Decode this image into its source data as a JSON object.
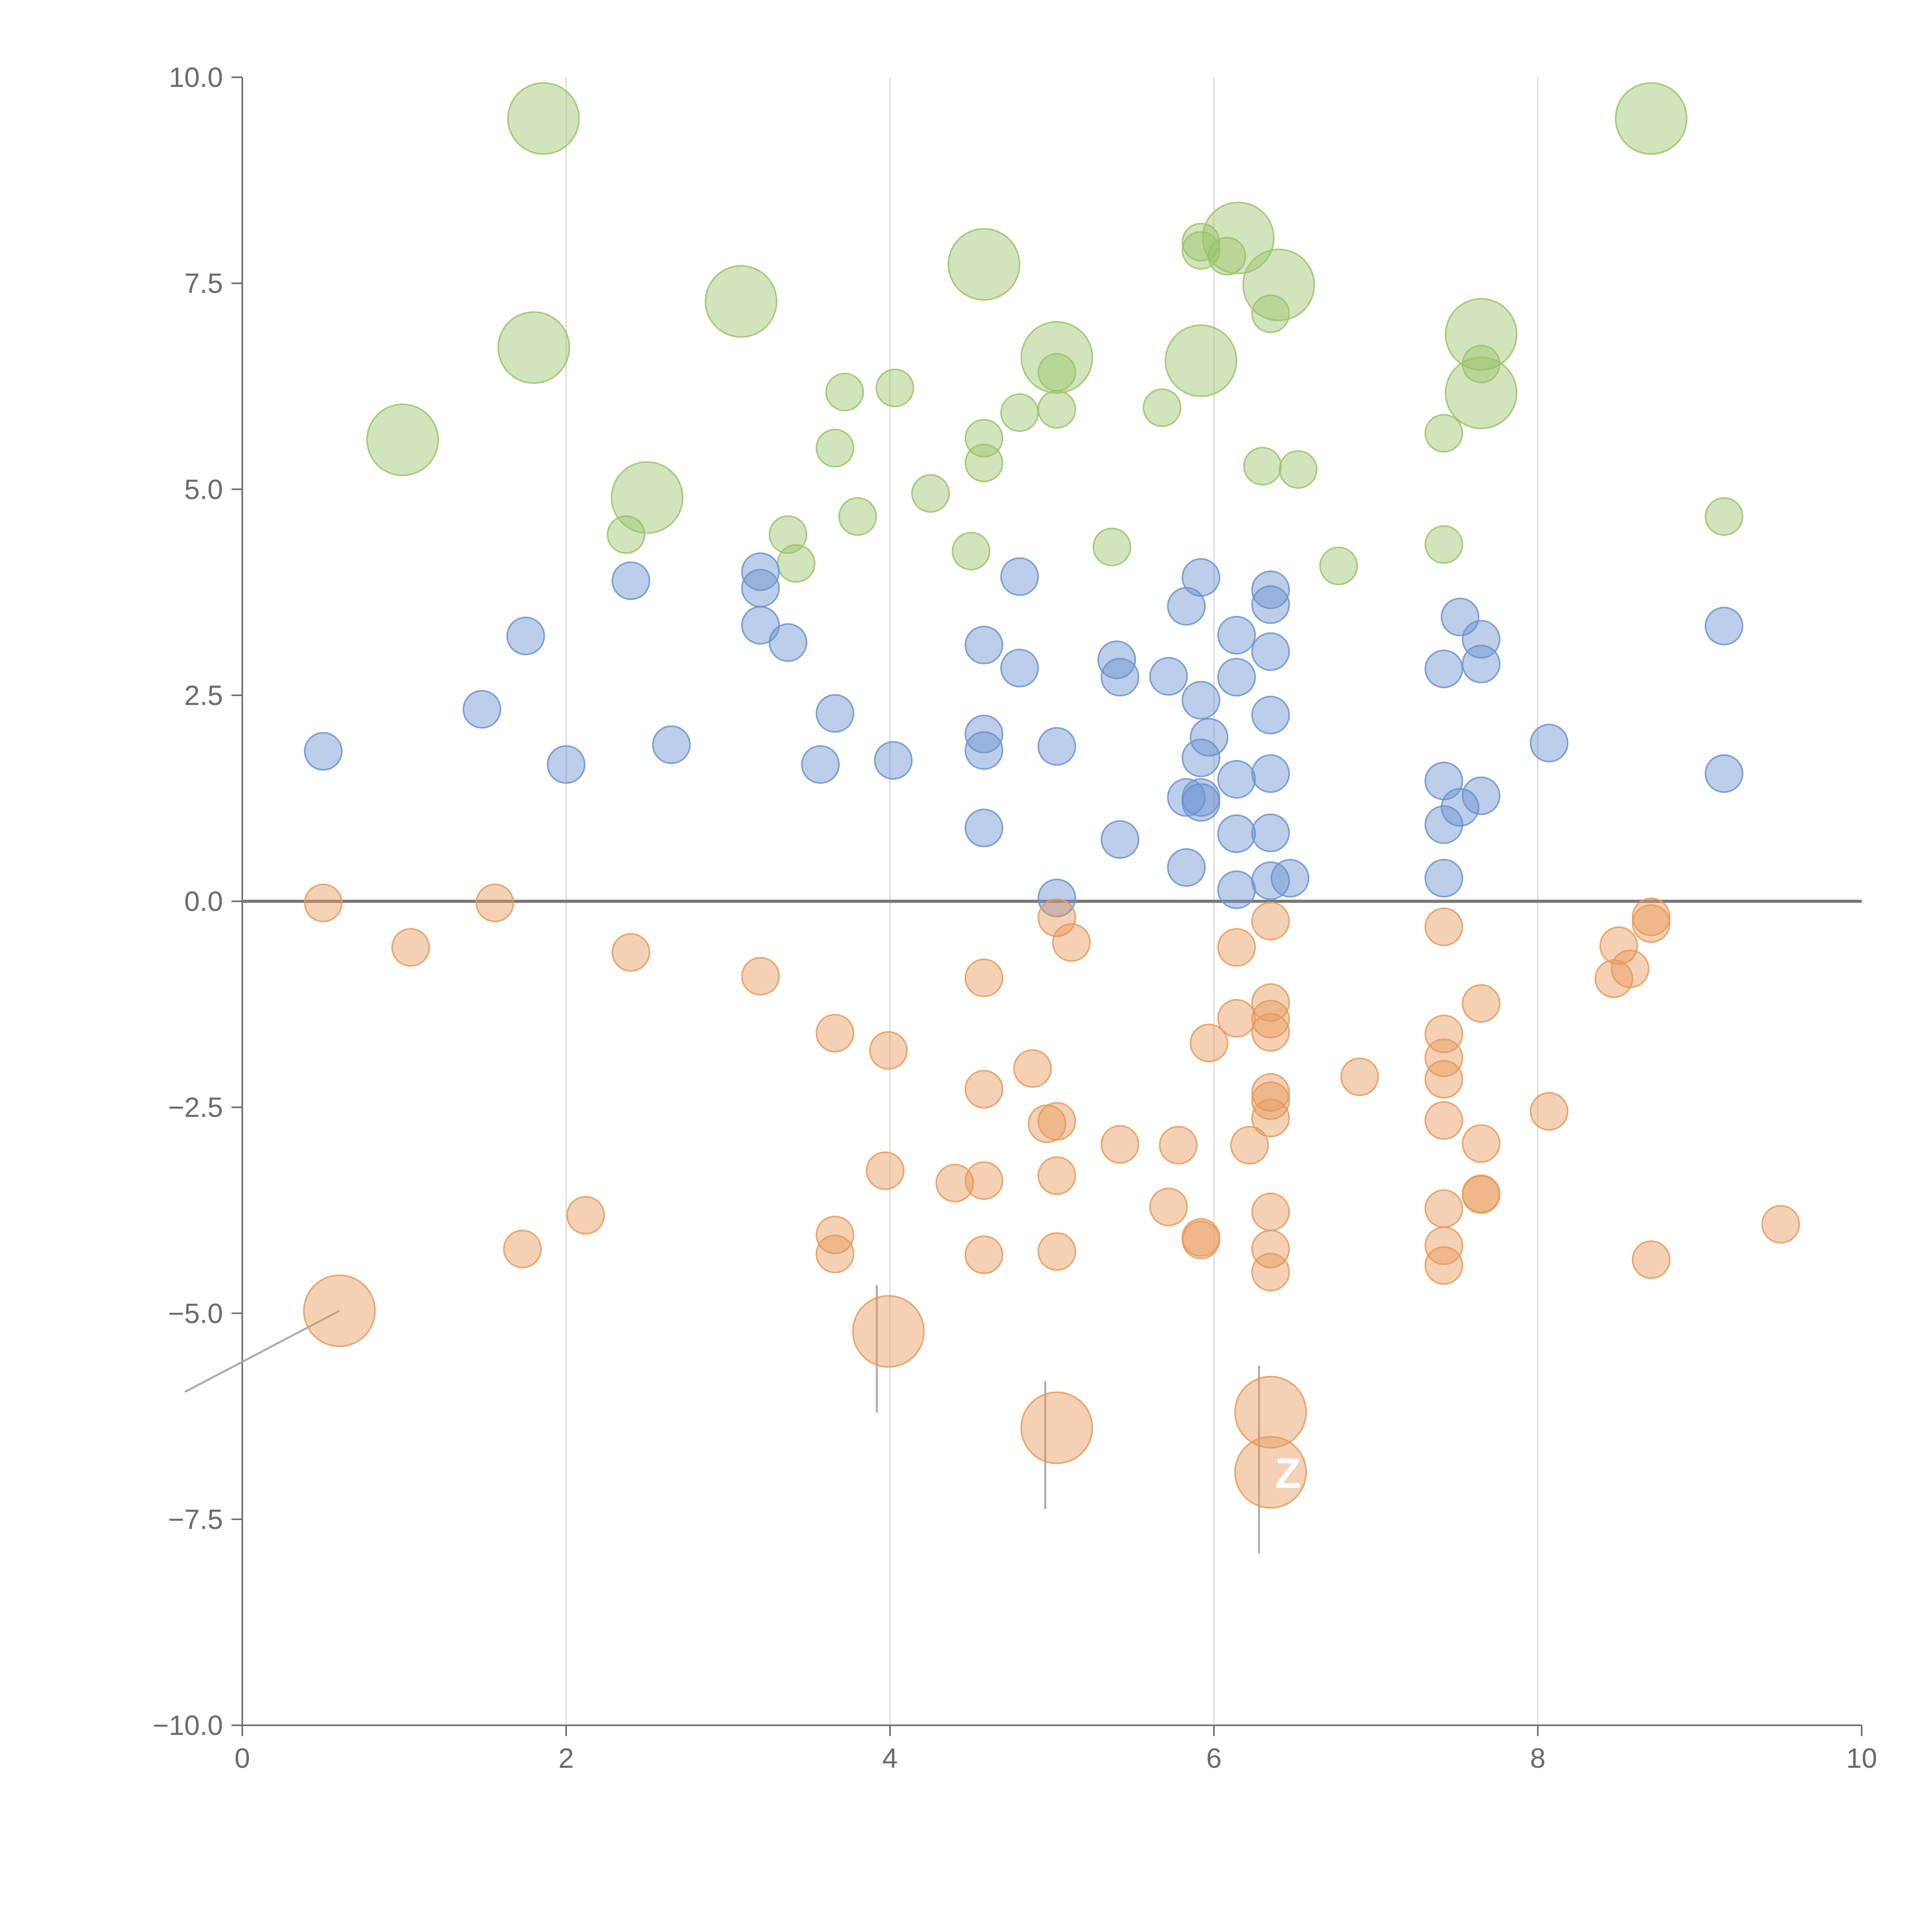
{
  "chart_data": {
    "type": "scatter",
    "title": "",
    "xlabel": "",
    "ylabel": "",
    "xlim": [
      0,
      10
    ],
    "ylim": [
      -10,
      10
    ],
    "x_ticks": [
      "0",
      "2",
      "4",
      "6",
      "8",
      "10"
    ],
    "y_ticks": [
      "10.0",
      "7.5",
      "5.0",
      "2.5",
      "0.0",
      "−2.5",
      "−5.0",
      "−7.5",
      "−10.0"
    ],
    "x_tick_values": [
      0,
      2,
      4,
      6,
      8,
      10
    ],
    "y_tick_values": [
      10,
      7.5,
      5,
      2.5,
      0,
      -2.5,
      -5,
      -7.5,
      -10
    ],
    "vertical_gridlines_at": [
      2,
      4,
      6,
      8
    ],
    "horizontal_reference_line": 0,
    "colors": {
      "green": "#9cc36a",
      "blue": "#6b93cf",
      "orange": "#e69a5a"
    },
    "series": [
      {
        "name": "green",
        "color": "#9cc36a",
        "small": [
          [
            2.37,
            4.45
          ],
          [
            3.37,
            4.45
          ],
          [
            3.42,
            4.1
          ],
          [
            3.66,
            5.5
          ],
          [
            3.72,
            6.18
          ],
          [
            3.8,
            4.67
          ],
          [
            4.03,
            6.23
          ],
          [
            4.25,
            4.95
          ],
          [
            4.5,
            4.25
          ],
          [
            4.58,
            5.62
          ],
          [
            4.58,
            5.32
          ],
          [
            4.8,
            5.93
          ],
          [
            5.03,
            5.97
          ],
          [
            5.03,
            6.42
          ],
          [
            5.37,
            4.3
          ],
          [
            5.68,
            5.99
          ],
          [
            5.92,
            7.9
          ],
          [
            5.92,
            8.0
          ],
          [
            6.08,
            7.83
          ],
          [
            6.35,
            7.13
          ],
          [
            6.3,
            5.28
          ],
          [
            6.52,
            5.24
          ],
          [
            6.77,
            4.07
          ],
          [
            7.42,
            5.68
          ],
          [
            7.42,
            4.33
          ],
          [
            7.65,
            6.52
          ],
          [
            9.15,
            4.67
          ]
        ],
        "large": [
          [
            0.99,
            5.6
          ],
          [
            1.8,
            6.72
          ],
          [
            1.86,
            9.5
          ],
          [
            2.5,
            4.9
          ],
          [
            3.08,
            7.28
          ],
          [
            4.58,
            7.73
          ],
          [
            5.03,
            6.6
          ],
          [
            5.92,
            6.56
          ],
          [
            6.15,
            8.05
          ],
          [
            6.4,
            7.48
          ],
          [
            7.65,
            6.88
          ],
          [
            7.65,
            6.17
          ],
          [
            8.7,
            9.5
          ]
        ]
      },
      {
        "name": "blue",
        "color": "#6b93cf",
        "small": [
          [
            0.5,
            1.82
          ],
          [
            1.48,
            2.33
          ],
          [
            1.75,
            3.22
          ],
          [
            2.0,
            1.66
          ],
          [
            2.4,
            3.89
          ],
          [
            2.65,
            1.9
          ],
          [
            3.2,
            4.0
          ],
          [
            3.2,
            3.8
          ],
          [
            3.2,
            3.35
          ],
          [
            3.37,
            3.14
          ],
          [
            3.57,
            1.66
          ],
          [
            3.66,
            2.28
          ],
          [
            4.02,
            1.71
          ],
          [
            4.58,
            3.11
          ],
          [
            4.58,
            2.03
          ],
          [
            4.58,
            1.83
          ],
          [
            4.58,
            0.89
          ],
          [
            4.8,
            3.94
          ],
          [
            4.8,
            2.83
          ],
          [
            5.03,
            1.88
          ],
          [
            5.03,
            0.04
          ],
          [
            5.4,
            2.93
          ],
          [
            5.42,
            2.72
          ],
          [
            5.42,
            0.75
          ],
          [
            5.72,
            2.73
          ],
          [
            5.83,
            3.58
          ],
          [
            5.83,
            1.26
          ],
          [
            5.83,
            0.41
          ],
          [
            5.92,
            3.93
          ],
          [
            5.92,
            2.44
          ],
          [
            5.92,
            1.74
          ],
          [
            5.92,
            1.26
          ],
          [
            5.92,
            1.2
          ],
          [
            5.97,
            1.99
          ],
          [
            6.14,
            3.23
          ],
          [
            6.14,
            2.72
          ],
          [
            6.14,
            1.48
          ],
          [
            6.14,
            0.82
          ],
          [
            6.14,
            0.14
          ],
          [
            6.35,
            3.78
          ],
          [
            6.35,
            3.6
          ],
          [
            6.35,
            3.03
          ],
          [
            6.35,
            2.26
          ],
          [
            6.35,
            1.55
          ],
          [
            6.35,
            0.83
          ],
          [
            6.35,
            0.25
          ],
          [
            6.47,
            0.28
          ],
          [
            7.42,
            2.82
          ],
          [
            7.42,
            1.46
          ],
          [
            7.42,
            0.93
          ],
          [
            7.42,
            0.28
          ],
          [
            7.52,
            3.45
          ],
          [
            7.52,
            1.14
          ],
          [
            7.65,
            3.18
          ],
          [
            7.65,
            2.88
          ],
          [
            7.65,
            1.28
          ],
          [
            8.07,
            1.92
          ],
          [
            9.15,
            3.34
          ],
          [
            9.15,
            1.55
          ]
        ],
        "large": []
      },
      {
        "name": "orange",
        "color": "#e69a5a",
        "small": [
          [
            0.5,
            -0.02
          ],
          [
            1.04,
            -0.56
          ],
          [
            1.56,
            -0.02
          ],
          [
            1.73,
            -4.22
          ],
          [
            2.12,
            -3.81
          ],
          [
            2.4,
            -0.62
          ],
          [
            3.2,
            -0.91
          ],
          [
            3.66,
            -1.6
          ],
          [
            3.66,
            -4.05
          ],
          [
            3.66,
            -4.28
          ],
          [
            3.97,
            -3.27
          ],
          [
            3.99,
            -1.81
          ],
          [
            4.4,
            -3.42
          ],
          [
            4.58,
            -0.93
          ],
          [
            4.58,
            -2.28
          ],
          [
            4.58,
            -3.39
          ],
          [
            4.58,
            -4.29
          ],
          [
            4.88,
            -2.03
          ],
          [
            4.97,
            -2.7
          ],
          [
            5.03,
            -0.2
          ],
          [
            5.03,
            -2.67
          ],
          [
            5.03,
            -3.33
          ],
          [
            5.03,
            -4.25
          ],
          [
            5.12,
            -0.5
          ],
          [
            5.42,
            -2.95
          ],
          [
            5.72,
            -3.71
          ],
          [
            5.78,
            -2.96
          ],
          [
            5.92,
            -4.08
          ],
          [
            5.92,
            -4.11
          ],
          [
            5.97,
            -1.72
          ],
          [
            6.14,
            -0.56
          ],
          [
            6.14,
            -1.42
          ],
          [
            6.22,
            -2.96
          ],
          [
            6.35,
            -0.24
          ],
          [
            6.35,
            -1.23
          ],
          [
            6.35,
            -1.43
          ],
          [
            6.35,
            -1.59
          ],
          [
            6.35,
            -2.32
          ],
          [
            6.35,
            -2.42
          ],
          [
            6.35,
            -2.63
          ],
          [
            6.35,
            -3.77
          ],
          [
            6.35,
            -4.22
          ],
          [
            6.35,
            -4.5
          ],
          [
            6.9,
            -2.13
          ],
          [
            7.42,
            -0.31
          ],
          [
            7.42,
            -1.61
          ],
          [
            7.42,
            -1.9
          ],
          [
            7.42,
            -2.16
          ],
          [
            7.42,
            -2.66
          ],
          [
            7.42,
            -3.73
          ],
          [
            7.42,
            -4.18
          ],
          [
            7.42,
            -4.42
          ],
          [
            7.65,
            -1.24
          ],
          [
            7.65,
            -2.94
          ],
          [
            7.65,
            -3.55
          ],
          [
            7.65,
            -3.56
          ],
          [
            8.07,
            -2.55
          ],
          [
            8.47,
            -0.94
          ],
          [
            8.5,
            -0.54
          ],
          [
            8.57,
            -0.82
          ],
          [
            8.7,
            -0.19
          ],
          [
            8.7,
            -0.27
          ],
          [
            8.7,
            -4.35
          ],
          [
            9.5,
            -3.92
          ]
        ],
        "large": [
          [
            0.6,
            -4.97
          ],
          [
            3.99,
            -5.22
          ],
          [
            5.03,
            -6.39
          ],
          [
            6.35,
            -6.2
          ],
          [
            6.35,
            -6.93
          ]
        ]
      }
    ],
    "annotations": [
      {
        "text": "Z",
        "x": 6.35,
        "y": -6.93
      }
    ]
  }
}
